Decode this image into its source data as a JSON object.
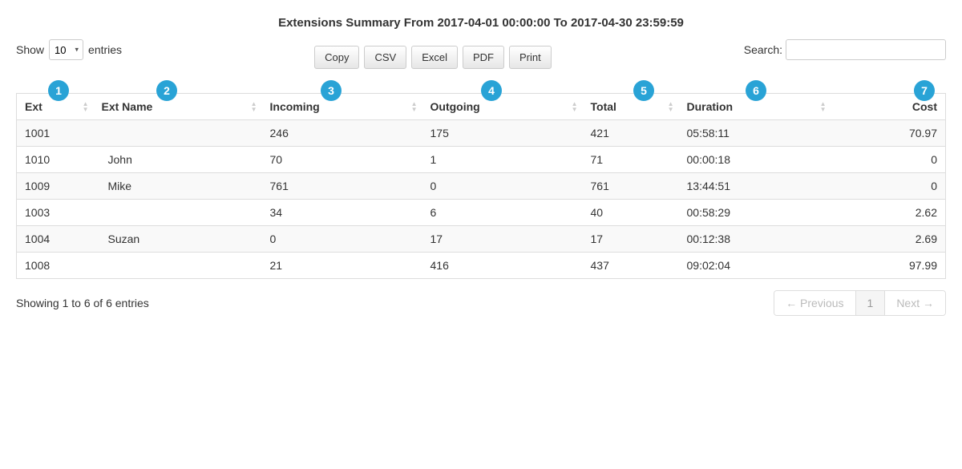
{
  "title": "Extensions Summary From 2017-04-01 00:00:00 To 2017-04-30 23:59:59",
  "show": {
    "label_pre": "Show",
    "value": "10",
    "label_post": "entries"
  },
  "export_buttons": {
    "copy": "Copy",
    "csv": "CSV",
    "excel": "Excel",
    "pdf": "PDF",
    "print": "Print"
  },
  "search": {
    "label": "Search:",
    "value": ""
  },
  "columns": {
    "ext": "Ext",
    "ext_name": "Ext Name",
    "incoming": "Incoming",
    "outgoing": "Outgoing",
    "total": "Total",
    "duration": "Duration",
    "cost": "Cost"
  },
  "annotations": {
    "b1": "1",
    "b2": "2",
    "b3": "3",
    "b4": "4",
    "b5": "5",
    "b6": "6",
    "b7": "7"
  },
  "annotation_color": "#29a3d6",
  "rows": [
    {
      "ext": "1001",
      "ext_name": "",
      "incoming": "246",
      "outgoing": "175",
      "total": "421",
      "duration": "05:58:11",
      "cost": "70.97"
    },
    {
      "ext": "1010",
      "ext_name": "John",
      "incoming": "70",
      "outgoing": "1",
      "total": "71",
      "duration": "00:00:18",
      "cost": "0"
    },
    {
      "ext": "1009",
      "ext_name": "Mike",
      "incoming": "761",
      "outgoing": "0",
      "total": "761",
      "duration": "13:44:51",
      "cost": "0"
    },
    {
      "ext": "1003",
      "ext_name": "",
      "incoming": "34",
      "outgoing": "6",
      "total": "40",
      "duration": "00:58:29",
      "cost": "2.62"
    },
    {
      "ext": "1004",
      "ext_name": "Suzan",
      "incoming": "0",
      "outgoing": "17",
      "total": "17",
      "duration": "00:12:38",
      "cost": "2.69"
    },
    {
      "ext": "1008",
      "ext_name": "",
      "incoming": "21",
      "outgoing": "416",
      "total": "437",
      "duration": "09:02:04",
      "cost": "97.99"
    }
  ],
  "info_text": "Showing 1 to 6 of 6 entries",
  "pagination": {
    "prev": "← Previous",
    "page1": "1",
    "next": "Next →"
  },
  "col_widths": {
    "ext": "96px",
    "ext_name": "210px",
    "incoming": "200px",
    "outgoing": "200px",
    "total": "120px",
    "duration": "190px",
    "cost": "auto"
  },
  "annotation_offsets": {
    "b1": 40,
    "b2": 175,
    "b3": 380,
    "b4": 580,
    "b5": 770,
    "b6": 910,
    "b7": 1120
  }
}
